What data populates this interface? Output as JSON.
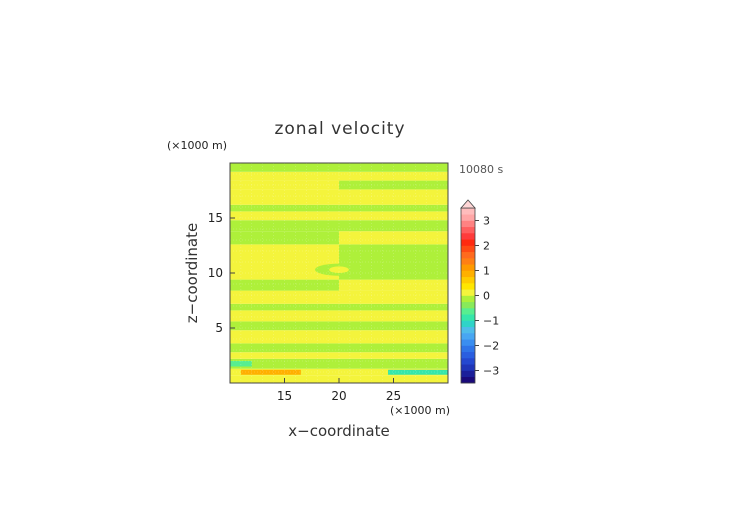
{
  "chart_data": {
    "type": "heatmap",
    "title": "zonal velocity",
    "time_label": "10080 s",
    "xlabel": "x−coordinate",
    "ylabel": "z−coordinate",
    "x_unit": "(×1000 m)",
    "z_unit": "(×1000 m)",
    "xlim": [
      10,
      30
    ],
    "ylim": [
      0,
      20
    ],
    "x_ticks": [
      15,
      20,
      25
    ],
    "y_ticks": [
      5,
      10,
      15
    ],
    "x_tick_labels": [
      "15",
      "20",
      "25"
    ],
    "y_tick_labels": [
      "5",
      "10",
      "15"
    ],
    "colorbar": {
      "levels": [
        -3.5,
        -3.25,
        -3,
        -2.75,
        -2.5,
        -2.25,
        -2,
        -1.75,
        -1.5,
        -1.25,
        -1,
        -0.75,
        -0.5,
        -0.25,
        0,
        0.25,
        0.5,
        0.75,
        1,
        1.25,
        1.5,
        1.75,
        2,
        2.25,
        2.5,
        2.75,
        3,
        3.25,
        3.5
      ],
      "colors": [
        "#1a0a7a",
        "#1b1f9a",
        "#1f35b8",
        "#2448d0",
        "#2a5ee0",
        "#2f74e8",
        "#3a8ef0",
        "#48a6f2",
        "#4fbcea",
        "#2fd4c8",
        "#36e6aa",
        "#58ee90",
        "#88ea5a",
        "#aef03a",
        "#f4f43c",
        "#ffe600",
        "#ffcc00",
        "#ffb000",
        "#ff9a00",
        "#ff7f14",
        "#ff6a1e",
        "#ff4a14",
        "#ff2a10",
        "#ff3b3b",
        "#ff5e5e",
        "#ff8282",
        "#ffa6a6",
        "#ffbcbc"
      ],
      "tick_labels": [
        "3",
        "2",
        "1",
        "0",
        "−1",
        "−2",
        "−3"
      ],
      "tick_values": [
        3,
        2,
        1,
        0,
        -1,
        -2,
        -3
      ],
      "extend": "max"
    },
    "bands": [
      {
        "z0": 0.0,
        "z1": 0.7,
        "x0": 10,
        "x1": 30,
        "value": 0.2
      },
      {
        "z0": 0.7,
        "z1": 1.3,
        "x0": 10,
        "x1": 30,
        "value": 0.1
      },
      {
        "z0": 0.75,
        "z1": 1.2,
        "x0": 11,
        "x1": 16.5,
        "value": 0.8
      },
      {
        "z0": 0.75,
        "z1": 1.2,
        "x0": 24.5,
        "x1": 30,
        "value": -0.9
      },
      {
        "z0": 1.3,
        "z1": 2.2,
        "x0": 10,
        "x1": 30,
        "value": -0.1
      },
      {
        "z0": 1.5,
        "z1": 2.0,
        "x0": 10,
        "x1": 12,
        "value": -0.6
      },
      {
        "z0": 2.2,
        "z1": 2.8,
        "x0": 10,
        "x1": 30,
        "value": 0.1
      },
      {
        "z0": 2.8,
        "z1": 3.6,
        "x0": 10,
        "x1": 30,
        "value": -0.1
      },
      {
        "z0": 3.6,
        "z1": 4.8,
        "x0": 10,
        "x1": 30,
        "value": 0.1
      },
      {
        "z0": 4.8,
        "z1": 5.6,
        "x0": 10,
        "x1": 30,
        "value": -0.1
      },
      {
        "z0": 5.6,
        "z1": 6.6,
        "x0": 10,
        "x1": 30,
        "value": 0.1
      },
      {
        "z0": 6.6,
        "z1": 7.2,
        "x0": 10,
        "x1": 30,
        "value": -0.1
      },
      {
        "z0": 7.2,
        "z1": 8.4,
        "x0": 10,
        "x1": 30,
        "value": 0.1
      },
      {
        "z0": 8.4,
        "z1": 9.4,
        "x0": 10,
        "x1": 20,
        "value": -0.1
      },
      {
        "z0": 8.4,
        "z1": 9.4,
        "x0": 20,
        "x1": 30,
        "value": 0.1
      },
      {
        "z0": 9.4,
        "z1": 12.6,
        "x0": 10,
        "x1": 20,
        "value": 0.1
      },
      {
        "z0": 9.4,
        "z1": 12.6,
        "x0": 20,
        "x1": 30,
        "value": -0.1
      },
      {
        "z0": 12.6,
        "z1": 13.8,
        "x0": 10,
        "x1": 20,
        "value": -0.1
      },
      {
        "z0": 12.6,
        "z1": 13.8,
        "x0": 20,
        "x1": 30,
        "value": 0.1
      },
      {
        "z0": 13.8,
        "z1": 14.8,
        "x0": 10,
        "x1": 30,
        "value": -0.1
      },
      {
        "z0": 14.8,
        "z1": 15.6,
        "x0": 10,
        "x1": 30,
        "value": 0.1
      },
      {
        "z0": 15.6,
        "z1": 16.2,
        "x0": 10,
        "x1": 30,
        "value": -0.1
      },
      {
        "z0": 16.2,
        "z1": 17.6,
        "x0": 10,
        "x1": 30,
        "value": 0.1
      },
      {
        "z0": 17.6,
        "z1": 18.4,
        "x0": 10,
        "x1": 20,
        "value": 0.1
      },
      {
        "z0": 17.6,
        "z1": 18.4,
        "x0": 20,
        "x1": 30,
        "value": -0.1
      },
      {
        "z0": 18.4,
        "z1": 19.2,
        "x0": 10,
        "x1": 30,
        "value": 0.1
      },
      {
        "z0": 19.2,
        "z1": 20.0,
        "x0": 10,
        "x1": 30,
        "value": -0.1
      }
    ],
    "blobs": [
      {
        "cx": 20,
        "cz": 10.3,
        "rx": 2.2,
        "rz": 0.55,
        "value": -0.1
      },
      {
        "cx": 20,
        "cz": 10.3,
        "rx": 0.9,
        "rz": 0.3,
        "value": 0.1
      }
    ]
  }
}
